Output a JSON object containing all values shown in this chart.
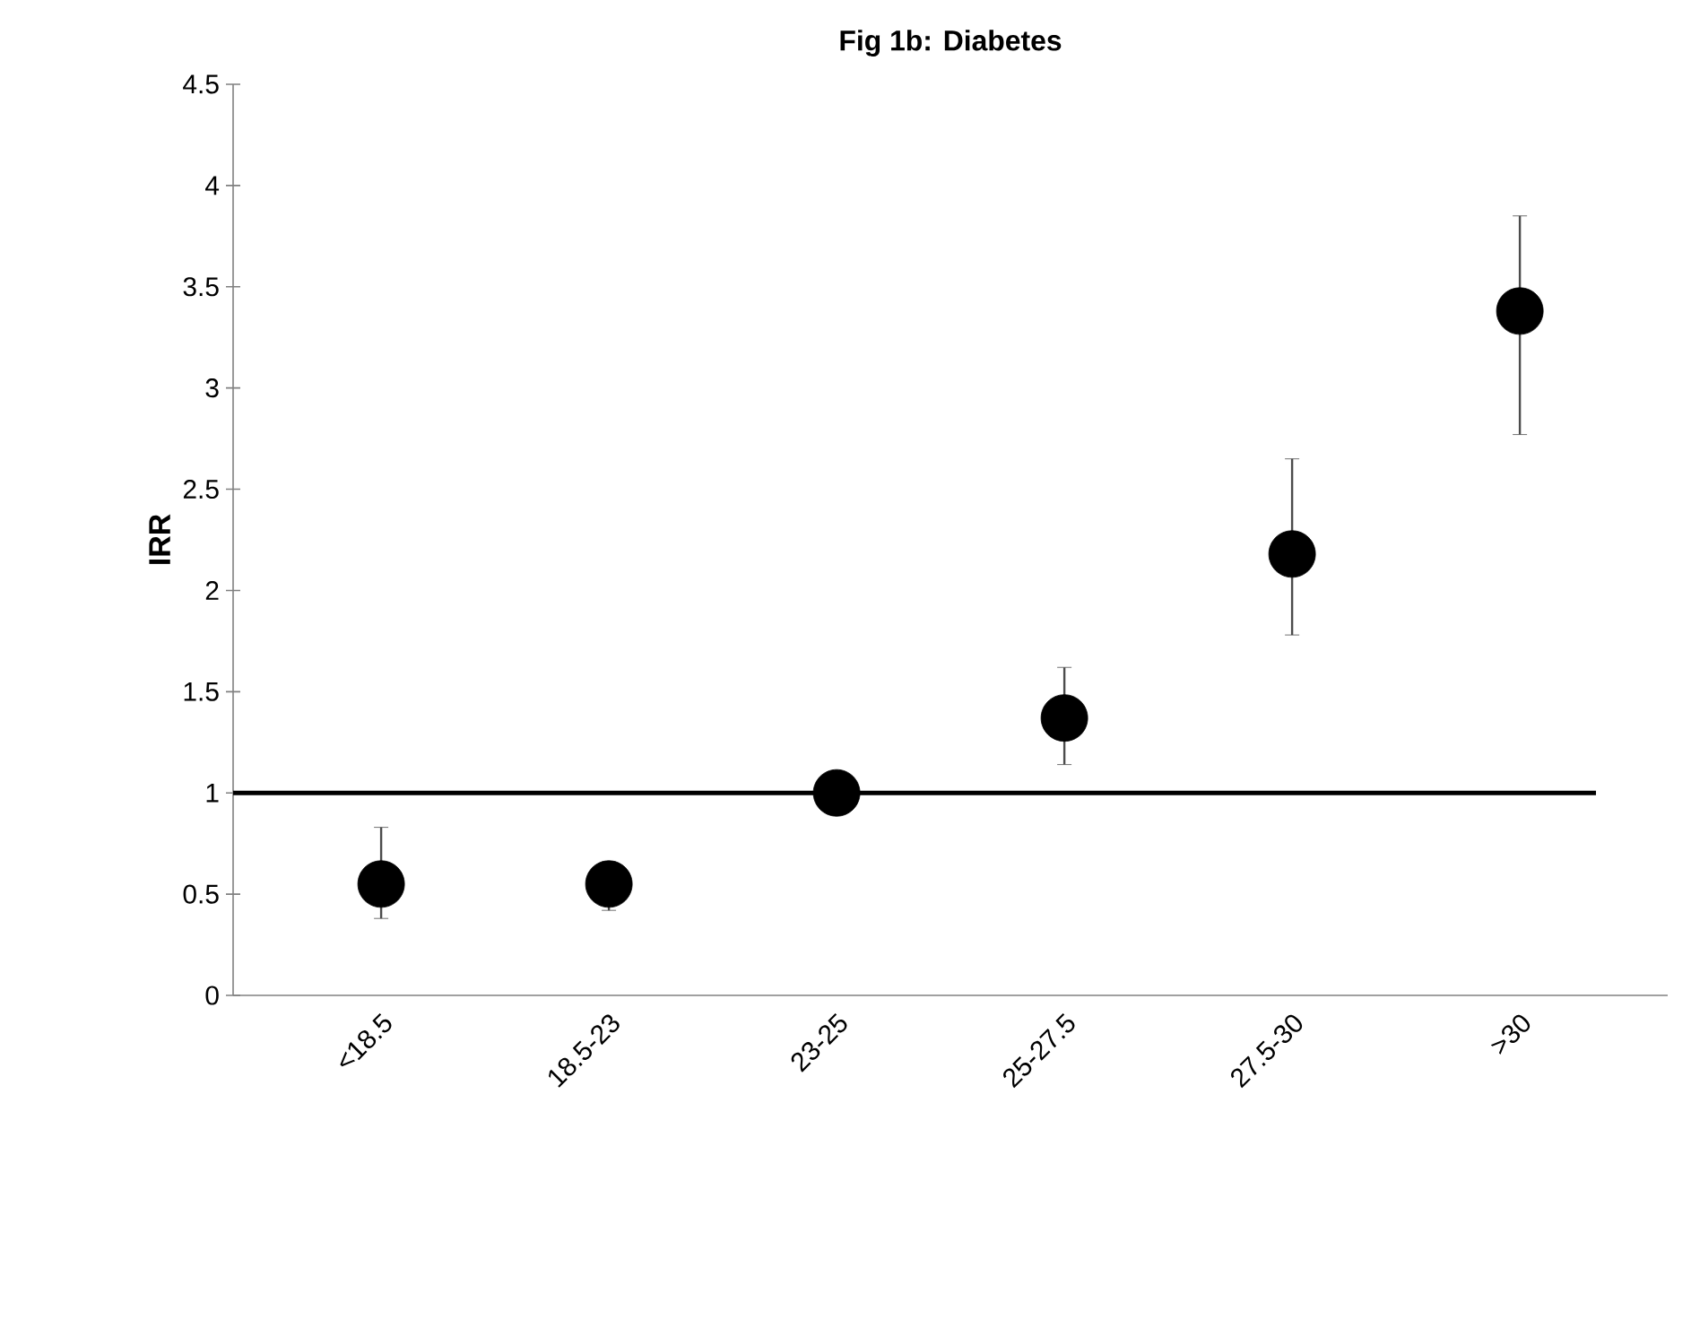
{
  "chart_data": {
    "type": "scatter",
    "title": "Fig 1b: Diabetes",
    "ylabel": "IRR",
    "categories": [
      "<18.5",
      "18.5-23",
      "23-25",
      "25-27.5",
      "27.5-30",
      ">30"
    ],
    "values": [
      0.55,
      0.55,
      1.0,
      1.37,
      2.18,
      3.38
    ],
    "errors": [
      [
        0.38,
        0.83
      ],
      [
        0.42,
        0.66
      ],
      null,
      [
        1.14,
        1.62
      ],
      [
        1.78,
        2.65
      ],
      [
        2.77,
        3.85
      ]
    ],
    "color": "#000000",
    "marker": "circle",
    "grid": false,
    "ylim": [
      0,
      4.5
    ],
    "yticks": [
      0,
      0.5,
      1,
      1.5,
      2,
      2.5,
      3,
      3.5,
      4,
      4.5
    ],
    "ref_lines": [
      {
        "axis": "y",
        "value": 1,
        "color": "#000000"
      }
    ]
  }
}
